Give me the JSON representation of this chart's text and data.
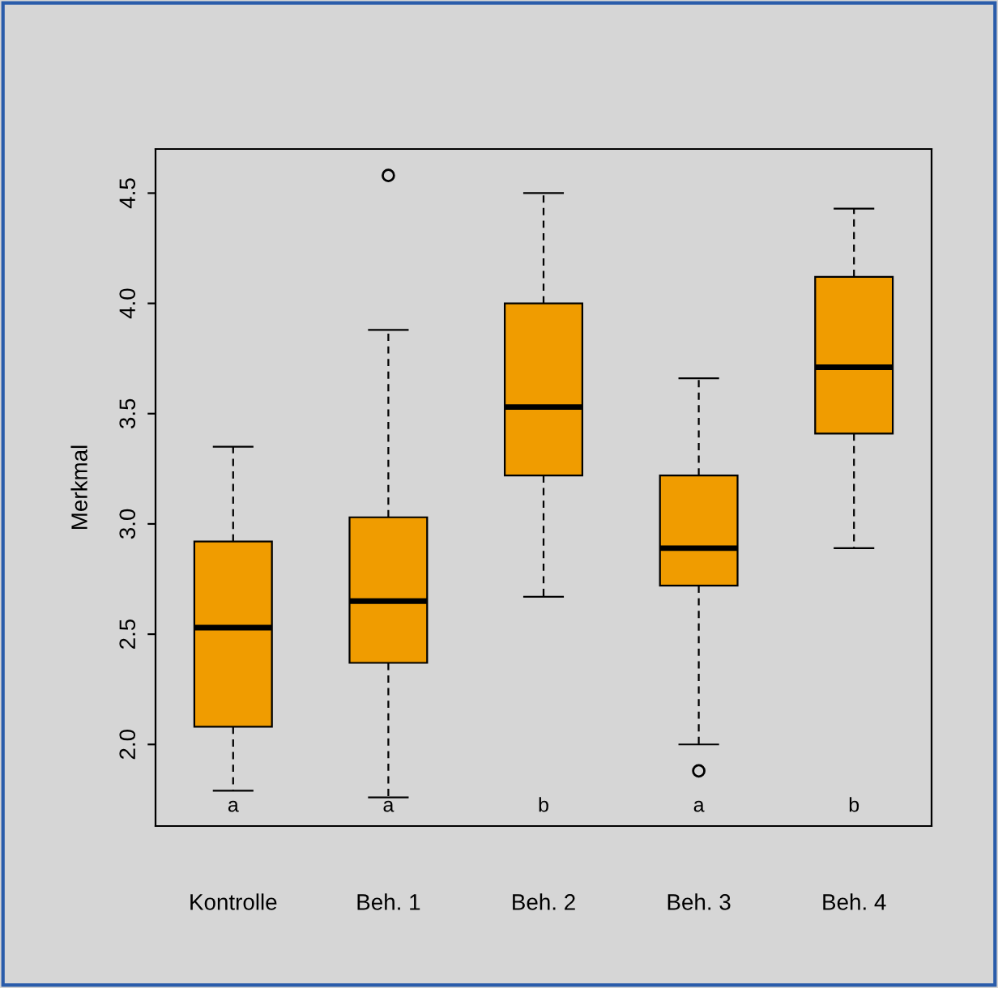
{
  "chart_data": {
    "type": "box",
    "ylabel": "Merkmal",
    "categories": [
      "Kontrolle",
      "Beh. 1",
      "Beh. 2",
      "Beh. 3",
      "Beh. 4"
    ],
    "boxes": [
      {
        "low": 1.79,
        "q1": 2.08,
        "median": 2.53,
        "q3": 2.92,
        "high": 3.35
      },
      {
        "low": 1.76,
        "q1": 2.37,
        "median": 2.65,
        "q3": 3.03,
        "high": 3.88,
        "outliers": [
          4.58
        ]
      },
      {
        "low": 2.67,
        "q1": 3.22,
        "median": 3.53,
        "q3": 4.0,
        "high": 4.5
      },
      {
        "low": 2.0,
        "q1": 2.72,
        "median": 2.89,
        "q3": 3.22,
        "high": 3.66,
        "outliers": [
          1.88
        ]
      },
      {
        "low": 2.89,
        "q1": 3.41,
        "median": 3.71,
        "q3": 4.12,
        "high": 4.43
      }
    ],
    "color": "#f09c00",
    "ylim": [
      1.63,
      4.7
    ],
    "yticks": [
      {
        "value": 2,
        "label": "2.0"
      },
      2.5,
      {
        "value": 3,
        "label": "3.0"
      },
      3.5,
      {
        "value": 4,
        "label": "4.0"
      },
      4.5
    ],
    "annotations": [
      "a",
      "a",
      "b",
      "a",
      "b"
    ],
    "grid": false,
    "legend": false
  }
}
